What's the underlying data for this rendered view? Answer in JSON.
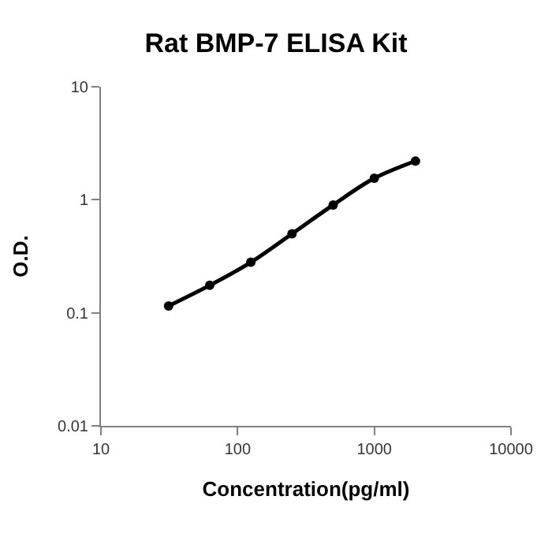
{
  "chart_data": {
    "type": "line",
    "title": "Rat BMP-7 ELISA Kit",
    "xlabel": "Concentration(pg/ml)",
    "ylabel": "O.D.",
    "x": [
      31.25,
      62.5,
      125,
      250,
      500,
      1000,
      2000
    ],
    "series": [
      {
        "color": "#000000",
        "values": [
          0.115,
          0.175,
          0.28,
          0.5,
          0.9,
          1.55,
          2.2
        ]
      }
    ],
    "log": "xy",
    "xlim": [
      10,
      10000
    ],
    "xticks": [
      10,
      100,
      1000,
      10000
    ],
    "ylim": [
      0.01,
      10
    ],
    "yticks": [
      0.01,
      0.1,
      1,
      10
    ],
    "legend": false,
    "marker": "circle",
    "line_style": "solid"
  }
}
